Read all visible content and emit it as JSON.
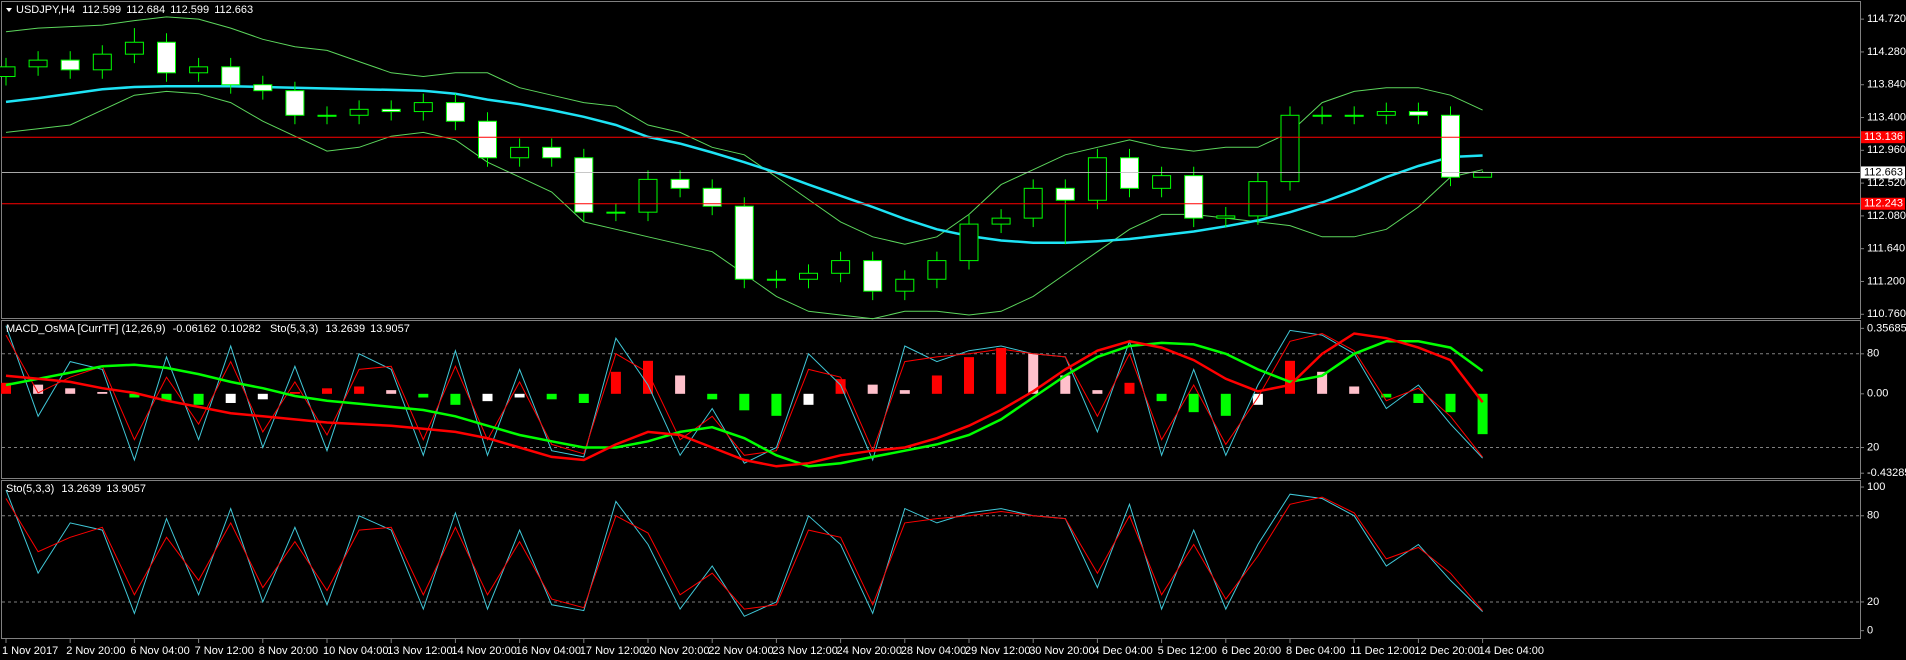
{
  "chart_data": [
    {
      "type": "candlestick",
      "title": "USDJPY,H4",
      "candles": {
        "open": [
          113.95,
          114.08,
          114.17,
          114.04,
          114.25,
          114.41,
          114.0,
          114.08,
          113.84,
          113.76,
          113.43,
          113.43,
          113.51,
          113.48,
          113.6,
          113.35,
          112.86,
          113.0,
          112.86,
          112.13,
          112.13,
          112.57,
          112.45,
          112.21,
          111.23,
          111.23,
          111.31,
          111.48,
          111.07,
          111.23,
          111.48,
          111.97,
          112.05,
          112.45,
          112.29,
          112.86,
          112.45,
          112.62,
          112.05,
          112.08,
          112.54,
          113.43,
          113.43,
          113.43,
          113.48,
          113.43,
          112.599
        ],
        "high": [
          114.2,
          114.29,
          114.29,
          114.37,
          114.6,
          114.53,
          114.2,
          114.2,
          113.96,
          113.88,
          113.55,
          113.63,
          113.63,
          113.72,
          113.72,
          113.47,
          113.12,
          113.12,
          112.98,
          112.25,
          112.69,
          112.69,
          112.57,
          112.33,
          111.35,
          111.43,
          111.6,
          111.6,
          111.35,
          111.6,
          112.09,
          112.17,
          112.57,
          112.57,
          112.98,
          112.98,
          112.74,
          112.74,
          112.2,
          112.66,
          113.55,
          113.55,
          113.55,
          113.6,
          113.6,
          113.55,
          112.684
        ],
        "low": [
          113.83,
          113.96,
          113.92,
          113.92,
          114.13,
          113.88,
          113.88,
          113.72,
          113.64,
          113.31,
          113.31,
          113.31,
          113.36,
          113.36,
          113.23,
          112.74,
          112.74,
          112.74,
          112.01,
          112.01,
          112.01,
          112.33,
          112.09,
          111.11,
          111.11,
          111.11,
          111.19,
          110.95,
          110.95,
          111.11,
          111.36,
          111.85,
          111.93,
          111.7,
          112.17,
          112.33,
          112.33,
          111.93,
          111.93,
          111.96,
          112.42,
          113.31,
          113.31,
          113.31,
          113.31,
          112.48,
          112.599
        ],
        "close": [
          114.08,
          114.17,
          114.04,
          114.25,
          114.41,
          114.0,
          114.08,
          113.84,
          113.76,
          113.43,
          113.43,
          113.51,
          113.48,
          113.6,
          113.35,
          112.86,
          113.0,
          112.86,
          112.13,
          112.13,
          112.57,
          112.45,
          112.21,
          111.23,
          111.23,
          111.31,
          111.48,
          111.07,
          111.23,
          111.48,
          111.97,
          112.05,
          112.45,
          112.29,
          112.86,
          112.45,
          112.62,
          112.05,
          112.08,
          112.54,
          113.43,
          113.43,
          113.43,
          113.48,
          113.43,
          112.599,
          112.663
        ]
      },
      "up_color": "#000000",
      "down_color": "#ffffff",
      "wick_color": "#00ff00",
      "series": [
        {
          "color": "#5cd65c",
          "width": 1,
          "values": [
            114.55,
            114.6,
            114.62,
            114.64,
            114.7,
            114.75,
            114.72,
            114.6,
            114.45,
            114.35,
            114.3,
            114.15,
            114.0,
            113.95,
            114.0,
            114.0,
            113.8,
            113.7,
            113.6,
            113.55,
            113.3,
            113.2,
            113.0,
            112.9,
            112.6,
            112.3,
            112.0,
            111.8,
            111.7,
            111.8,
            112.1,
            112.5,
            112.7,
            112.9,
            113.0,
            113.1,
            113.0,
            112.95,
            113.0,
            113.0,
            113.2,
            113.6,
            113.75,
            113.8,
            113.8,
            113.7,
            113.5
          ]
        },
        {
          "color": "#5cd65c",
          "width": 1,
          "values": [
            113.2,
            113.25,
            113.3,
            113.5,
            113.7,
            113.75,
            113.72,
            113.6,
            113.35,
            113.15,
            112.95,
            113.0,
            113.15,
            113.2,
            113.1,
            112.8,
            112.6,
            112.4,
            112.0,
            111.9,
            111.8,
            111.7,
            111.6,
            111.3,
            111.0,
            110.8,
            110.75,
            110.7,
            110.8,
            110.8,
            110.75,
            110.8,
            111.0,
            111.3,
            111.6,
            111.9,
            112.1,
            112.1,
            112.05,
            112.0,
            111.95,
            111.8,
            111.8,
            111.9,
            112.2,
            112.6,
            112.7
          ]
        },
        {
          "color": "#1ee3f5",
          "width": 2.5,
          "values": [
            113.61,
            113.66,
            113.72,
            113.78,
            113.81,
            113.82,
            113.82,
            113.82,
            113.81,
            113.8,
            113.79,
            113.78,
            113.77,
            113.76,
            113.72,
            113.64,
            113.58,
            113.5,
            113.41,
            113.3,
            113.14,
            113.05,
            112.93,
            112.8,
            112.66,
            112.5,
            112.35,
            112.2,
            112.04,
            111.9,
            111.81,
            111.75,
            111.72,
            111.72,
            111.74,
            111.77,
            111.82,
            111.87,
            111.94,
            112.02,
            112.13,
            112.26,
            112.42,
            112.6,
            112.75,
            112.87,
            112.89
          ]
        }
      ],
      "levels": [
        113.136,
        112.243
      ],
      "level_color": "#ff0000",
      "last_price_color": "#c0c0c0",
      "ylim": [
        110.71,
        114.95
      ],
      "yticks": [
        {
          "value": 114.72,
          "label": "114.720"
        },
        {
          "value": 114.28,
          "label": "114.280"
        },
        {
          "value": 113.84,
          "label": "113.840"
        },
        {
          "value": 113.4,
          "label": "113.400"
        },
        {
          "value": 112.96,
          "label": "112.960"
        },
        {
          "value": 112.52,
          "label": "112.520"
        },
        {
          "value": 112.08,
          "label": "112.080"
        },
        {
          "value": 111.64,
          "label": "111.640"
        },
        {
          "value": 111.2,
          "label": "111.200"
        },
        {
          "value": 110.76,
          "label": "110.760"
        }
      ]
    },
    {
      "type": "histogram",
      "title": "MACD_OsMA [CurrTF] (12,26,9)",
      "current_values": [
        -0.06162,
        0.10282
      ],
      "values": [
        0.06,
        0.05,
        0.03,
        0.01,
        -0.02,
        -0.04,
        -0.06,
        -0.05,
        -0.03,
        0.01,
        0.03,
        0.04,
        0.02,
        -0.02,
        -0.06,
        -0.04,
        -0.02,
        -0.03,
        -0.05,
        0.12,
        0.18,
        0.1,
        -0.03,
        -0.09,
        -0.12,
        -0.06,
        0.08,
        0.05,
        0.02,
        0.1,
        0.2,
        0.25,
        0.22,
        0.1,
        0.02,
        0.06,
        -0.04,
        -0.1,
        -0.12,
        -0.06,
        0.18,
        0.12,
        0.04,
        -0.02,
        -0.05,
        -0.1,
        -0.22
      ],
      "hist_colors": {
        "pos_up": "#ff0000",
        "pos_down": "#ffc0cb",
        "neg_down": "#00ff00",
        "neg_up": "#ffffff"
      },
      "series": [
        {
          "color": "#00ff00",
          "width": 2.5,
          "axis": "y2",
          "values": [
            60,
            64,
            68,
            72,
            73,
            71,
            67,
            62,
            58,
            53,
            50,
            48,
            46,
            44,
            40,
            34,
            28,
            24,
            20,
            20,
            24,
            30,
            33,
            26,
            15,
            8,
            10,
            14,
            18,
            22,
            28,
            38,
            52,
            66,
            78,
            85,
            87,
            86,
            80,
            70,
            62,
            66,
            80,
            88,
            88,
            84,
            69
          ]
        },
        {
          "color": "#ff0000",
          "width": 2.5,
          "axis": "y2",
          "values": [
            66,
            64,
            62,
            58,
            55,
            50,
            46,
            42,
            40,
            38,
            36,
            35,
            34,
            32,
            30,
            26,
            20,
            14,
            12,
            22,
            30,
            28,
            20,
            12,
            8,
            10,
            15,
            18,
            20,
            26,
            34,
            44,
            56,
            70,
            82,
            88,
            84,
            76,
            64,
            56,
            60,
            80,
            93,
            90,
            84,
            76,
            49
          ]
        }
      ],
      "ylim": [
        -0.459,
        0.397
      ],
      "yticks": [
        0.35685,
        {
          "value": 0,
          "label": "0.00"
        },
        -0.43285
      ],
      "y2lim": [
        0.5,
        101
      ],
      "y2ticks": [
        80,
        20
      ]
    },
    {
      "type": "line",
      "title": "Sto(5,3,3)",
      "series": [
        {
          "color": "#40c8d8",
          "width": 1,
          "values": [
            98,
            40,
            75,
            70,
            12,
            78,
            25,
            85,
            20,
            72,
            18,
            80,
            70,
            15,
            82,
            15,
            70,
            18,
            14,
            90,
            60,
            15,
            45,
            10,
            20,
            80,
            60,
            12,
            85,
            75,
            82,
            85,
            80,
            78,
            30,
            88,
            15,
            70,
            15,
            60,
            95,
            92,
            80,
            45,
            60,
            35,
            13.2639
          ]
        },
        {
          "color": "#ff0000",
          "width": 1,
          "values": [
            92,
            55,
            65,
            72,
            25,
            65,
            35,
            75,
            30,
            62,
            28,
            70,
            72,
            25,
            72,
            25,
            62,
            22,
            16,
            80,
            68,
            25,
            40,
            15,
            18,
            70,
            65,
            18,
            75,
            78,
            80,
            83,
            80,
            78,
            40,
            80,
            25,
            60,
            22,
            52,
            88,
            93,
            82,
            50,
            58,
            40,
            13.9057
          ]
        }
      ],
      "ylim": [
        -5.1,
        104.2
      ],
      "yticks": [
        100,
        0
      ],
      "levels": [
        80,
        20
      ],
      "x_labels": [
        "1 Nov 2017",
        "2 Nov 20:00",
        "6 Nov 04:00",
        "7 Nov 12:00",
        "8 Nov 20:00",
        "10 Nov 04:00",
        "13 Nov 12:00",
        "14 Nov 20:00",
        "16 Nov 04:00",
        "17 Nov 12:00",
        "20 Nov 20:00",
        "22 Nov 04:00",
        "23 Nov 12:00",
        "24 Nov 20:00",
        "28 Nov 04:00",
        "29 Nov 12:00",
        "30 Nov 20:00",
        "4 Dec 04:00",
        "5 Dec 12:00",
        "6 Dec 20:00",
        "8 Dec 04:00",
        "11 Dec 12:00",
        "12 Dec 20:00",
        "14 Dec 04:00"
      ]
    }
  ]
}
